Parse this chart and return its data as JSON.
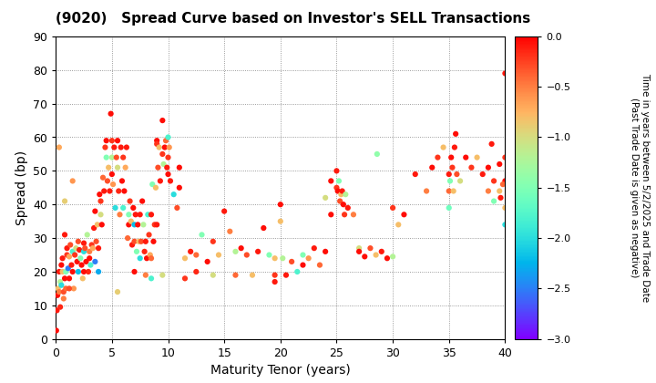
{
  "title": "(9020)   Spread Curve based on Investor's SELL Transactions",
  "xlabel": "Maturity Tenor (years)",
  "ylabel": "Spread (bp)",
  "colorbar_label": "Time in years between 5/2/2025 and Trade Date\n(Past Trade Date is given as negative)",
  "xlim": [
    0,
    40
  ],
  "ylim": [
    0,
    90
  ],
  "xticks": [
    0,
    5,
    10,
    15,
    20,
    25,
    30,
    35,
    40
  ],
  "yticks": [
    0,
    10,
    20,
    30,
    40,
    50,
    60,
    70,
    80,
    90
  ],
  "cmap_vmin": -3.0,
  "cmap_vmax": 0.0,
  "cticks": [
    0.0,
    -0.5,
    -1.0,
    -1.5,
    -2.0,
    -2.5,
    -3.0
  ],
  "background_color": "#ffffff",
  "marker_size": 20,
  "points": [
    [
      0.05,
      2.5,
      -0.05
    ],
    [
      0.1,
      8.5,
      -0.1
    ],
    [
      0.15,
      13.0,
      -0.05
    ],
    [
      0.2,
      15.0,
      -0.8
    ],
    [
      0.3,
      20.0,
      -0.1
    ],
    [
      0.3,
      14.0,
      -0.5
    ],
    [
      0.4,
      9.5,
      -0.15
    ],
    [
      0.4,
      17.0,
      -1.2
    ],
    [
      0.5,
      22.0,
      -0.05
    ],
    [
      0.5,
      16.0,
      -2.0
    ],
    [
      0.6,
      24.0,
      -0.1
    ],
    [
      0.6,
      20.0,
      -0.8
    ],
    [
      0.7,
      14.0,
      -0.3
    ],
    [
      0.7,
      12.0,
      -0.5
    ],
    [
      0.8,
      18.0,
      -0.05
    ],
    [
      0.8,
      31.0,
      -0.1
    ],
    [
      0.9,
      20.0,
      -1.5
    ],
    [
      0.9,
      15.0,
      -0.4
    ],
    [
      1.0,
      27.0,
      -0.1
    ],
    [
      1.0,
      25.0,
      -0.2
    ],
    [
      1.1,
      21.0,
      -2.5
    ],
    [
      1.2,
      18.0,
      -0.05
    ],
    [
      1.2,
      24.5,
      -0.7
    ],
    [
      1.3,
      28.0,
      -0.3
    ],
    [
      1.4,
      22.0,
      -0.1
    ],
    [
      1.5,
      26.0,
      -1.8
    ],
    [
      1.5,
      20.0,
      -0.05
    ],
    [
      1.6,
      15.0,
      -0.6
    ],
    [
      1.7,
      25.0,
      -0.2
    ],
    [
      1.8,
      27.0,
      -1.0
    ],
    [
      1.9,
      23.0,
      -0.05
    ],
    [
      2.0,
      20.0,
      -2.2
    ],
    [
      2.0,
      29.0,
      -0.3
    ],
    [
      2.1,
      26.5,
      -0.1
    ],
    [
      2.2,
      24.0,
      -1.5
    ],
    [
      2.3,
      22.0,
      -0.05
    ],
    [
      2.4,
      18.0,
      -0.8
    ],
    [
      2.5,
      28.5,
      -0.1
    ],
    [
      2.5,
      26.0,
      -2.0
    ],
    [
      2.6,
      27.0,
      -0.3
    ],
    [
      2.7,
      23.0,
      -0.05
    ],
    [
      2.8,
      31.0,
      -1.2
    ],
    [
      2.9,
      20.0,
      -0.15
    ],
    [
      3.0,
      26.0,
      -0.5
    ],
    [
      3.0,
      24.0,
      -0.05
    ],
    [
      3.1,
      22.0,
      -1.8
    ],
    [
      3.2,
      28.0,
      -0.2
    ],
    [
      3.3,
      27.0,
      -0.7
    ],
    [
      3.4,
      33.0,
      -0.1
    ],
    [
      3.5,
      23.0,
      -2.5
    ],
    [
      3.5,
      38.0,
      -0.05
    ],
    [
      3.6,
      29.0,
      -0.3
    ],
    [
      3.7,
      34.0,
      -0.8
    ],
    [
      3.8,
      27.0,
      -0.1
    ],
    [
      3.9,
      43.0,
      -0.05
    ],
    [
      4.0,
      41.0,
      -0.2
    ],
    [
      4.0,
      37.0,
      -1.0
    ],
    [
      4.1,
      34.0,
      -0.05
    ],
    [
      4.2,
      48.0,
      -0.4
    ],
    [
      4.3,
      44.0,
      -0.1
    ],
    [
      4.4,
      57.0,
      -0.2
    ],
    [
      4.5,
      54.0,
      -1.5
    ],
    [
      4.5,
      59.0,
      -0.05
    ],
    [
      4.6,
      47.0,
      -0.3
    ],
    [
      4.7,
      51.0,
      -0.8
    ],
    [
      4.8,
      44.0,
      -0.1
    ],
    [
      4.9,
      67.0,
      -0.05
    ],
    [
      5.0,
      59.0,
      -0.2
    ],
    [
      5.0,
      54.0,
      -1.2
    ],
    [
      5.0,
      49.0,
      -0.05
    ],
    [
      5.1,
      46.0,
      -0.6
    ],
    [
      5.2,
      57.0,
      -0.1
    ],
    [
      5.3,
      39.0,
      -2.0
    ],
    [
      5.4,
      54.0,
      -0.3
    ],
    [
      5.5,
      59.0,
      -0.05
    ],
    [
      5.5,
      51.0,
      -1.0
    ],
    [
      5.6,
      44.0,
      -0.15
    ],
    [
      5.7,
      37.0,
      -0.5
    ],
    [
      5.8,
      57.0,
      -0.1
    ],
    [
      5.9,
      47.0,
      -0.05
    ],
    [
      6.0,
      39.0,
      -1.8
    ],
    [
      6.0,
      54.0,
      -0.2
    ],
    [
      6.1,
      44.0,
      -0.05
    ],
    [
      6.2,
      51.0,
      -0.7
    ],
    [
      6.3,
      57.0,
      -0.1
    ],
    [
      6.4,
      30.0,
      -0.4
    ],
    [
      6.5,
      37.0,
      -1.5
    ],
    [
      6.5,
      34.0,
      -0.05
    ],
    [
      6.6,
      41.0,
      -0.2
    ],
    [
      6.7,
      35.0,
      -0.8
    ],
    [
      6.8,
      28.0,
      -0.1
    ],
    [
      6.9,
      39.0,
      -0.05
    ],
    [
      7.0,
      34.0,
      -2.2
    ],
    [
      7.0,
      29.0,
      -0.3
    ],
    [
      7.1,
      37.0,
      -0.1
    ],
    [
      7.2,
      26.0,
      -1.5
    ],
    [
      7.3,
      34.0,
      -0.05
    ],
    [
      7.4,
      29.0,
      -0.8
    ],
    [
      7.5,
      37.0,
      -0.1
    ],
    [
      7.5,
      24.0,
      -2.0
    ],
    [
      7.6,
      29.0,
      -0.3
    ],
    [
      7.7,
      41.0,
      -0.05
    ],
    [
      7.8,
      34.0,
      -1.2
    ],
    [
      7.9,
      26.0,
      -0.15
    ],
    [
      8.0,
      19.0,
      -0.5
    ],
    [
      8.0,
      29.0,
      -0.1
    ],
    [
      8.1,
      24.0,
      -0.05
    ],
    [
      8.2,
      37.0,
      -1.8
    ],
    [
      8.3,
      31.0,
      -0.2
    ],
    [
      8.4,
      25.0,
      -0.7
    ],
    [
      8.5,
      37.0,
      -0.1
    ],
    [
      8.5,
      24.0,
      -0.4
    ],
    [
      8.6,
      46.0,
      -1.5
    ],
    [
      8.7,
      29.0,
      -0.05
    ],
    [
      8.8,
      34.0,
      -0.2
    ],
    [
      8.9,
      45.0,
      -0.8
    ],
    [
      9.0,
      59.0,
      -0.05
    ],
    [
      9.0,
      34.0,
      -0.1
    ],
    [
      9.0,
      58.0,
      -0.2
    ],
    [
      9.1,
      51.0,
      -0.3
    ],
    [
      9.2,
      57.0,
      -0.8
    ],
    [
      9.3,
      47.0,
      -0.1
    ],
    [
      9.5,
      65.0,
      -0.05
    ],
    [
      9.5,
      55.0,
      -0.2
    ],
    [
      9.6,
      52.0,
      -1.2
    ],
    [
      9.7,
      57.0,
      -0.05
    ],
    [
      9.8,
      59.0,
      -0.4
    ],
    [
      9.9,
      51.0,
      -0.1
    ],
    [
      10.0,
      60.0,
      -1.8
    ],
    [
      10.0,
      54.0,
      -0.2
    ],
    [
      10.0,
      49.0,
      -0.05
    ],
    [
      10.1,
      57.0,
      -0.6
    ],
    [
      10.2,
      47.0,
      -0.1
    ],
    [
      10.5,
      43.0,
      -2.0
    ],
    [
      10.8,
      39.0,
      -0.3
    ],
    [
      11.0,
      45.0,
      -0.05
    ],
    [
      11.0,
      51.0,
      -0.05
    ],
    [
      11.5,
      24.0,
      -0.8
    ],
    [
      12.0,
      26.0,
      -0.1
    ],
    [
      12.5,
      25.0,
      -0.4
    ],
    [
      13.0,
      31.0,
      -1.5
    ],
    [
      13.5,
      23.0,
      -0.05
    ],
    [
      14.0,
      29.0,
      -0.2
    ],
    [
      14.5,
      25.0,
      -0.8
    ],
    [
      15.0,
      38.0,
      -0.1
    ],
    [
      15.5,
      32.0,
      -0.5
    ],
    [
      16.0,
      26.0,
      -1.2
    ],
    [
      16.5,
      27.0,
      -0.05
    ],
    [
      17.0,
      25.0,
      -0.3
    ],
    [
      17.5,
      19.0,
      -0.8
    ],
    [
      18.0,
      26.0,
      -0.1
    ],
    [
      18.5,
      33.0,
      -0.05
    ],
    [
      19.0,
      25.0,
      -1.5
    ],
    [
      19.5,
      19.0,
      -0.2
    ],
    [
      19.5,
      24.0,
      -0.8
    ],
    [
      20.0,
      40.0,
      -0.05
    ],
    [
      20.0,
      35.0,
      -0.8
    ],
    [
      20.2,
      24.0,
      -1.2
    ],
    [
      20.5,
      19.0,
      -0.1
    ],
    [
      21.0,
      23.0,
      -0.3
    ],
    [
      21.5,
      20.0,
      -1.8
    ],
    [
      22.0,
      22.0,
      -0.05
    ],
    [
      22.5,
      24.0,
      -0.6
    ],
    [
      23.0,
      27.0,
      -0.1
    ],
    [
      23.5,
      22.0,
      -0.4
    ],
    [
      24.0,
      42.0,
      -1.0
    ],
    [
      24.5,
      37.0,
      -0.05
    ],
    [
      24.5,
      47.0,
      -0.05
    ],
    [
      25.0,
      50.0,
      -0.1
    ],
    [
      25.0,
      45.0,
      -0.2
    ],
    [
      25.1,
      44.0,
      -0.05
    ],
    [
      25.2,
      47.0,
      -1.5
    ],
    [
      25.3,
      41.0,
      -0.3
    ],
    [
      25.4,
      43.0,
      -0.8
    ],
    [
      25.5,
      44.0,
      -0.1
    ],
    [
      25.6,
      40.0,
      -0.05
    ],
    [
      25.7,
      37.0,
      -0.2
    ],
    [
      25.8,
      43.0,
      -1.2
    ],
    [
      26.0,
      39.0,
      -0.1
    ],
    [
      26.5,
      37.0,
      -0.5
    ],
    [
      27.0,
      27.0,
      -1.0
    ],
    [
      27.5,
      24.5,
      -0.05
    ],
    [
      28.0,
      27.0,
      -0.3
    ],
    [
      28.5,
      25.0,
      -0.8
    ],
    [
      28.6,
      55.0,
      -1.4
    ],
    [
      29.0,
      26.0,
      -0.1
    ],
    [
      29.5,
      24.0,
      -0.05
    ],
    [
      30.0,
      39.0,
      -0.2
    ],
    [
      30.5,
      34.0,
      -0.8
    ],
    [
      31.0,
      37.0,
      -0.05
    ],
    [
      32.0,
      49.0,
      -0.1
    ],
    [
      33.0,
      44.0,
      -0.5
    ],
    [
      33.5,
      51.0,
      -0.05
    ],
    [
      34.0,
      54.0,
      -0.2
    ],
    [
      34.5,
      57.0,
      -0.8
    ],
    [
      35.0,
      49.0,
      -0.1
    ],
    [
      35.0,
      44.0,
      -0.4
    ],
    [
      35.1,
      47.0,
      -1.5
    ],
    [
      35.2,
      54.0,
      -0.05
    ],
    [
      35.3,
      51.0,
      -0.2
    ],
    [
      35.4,
      44.0,
      -0.8
    ],
    [
      35.5,
      57.0,
      -0.1
    ],
    [
      35.6,
      61.0,
      -0.05
    ],
    [
      35.7,
      49.0,
      -0.3
    ],
    [
      36.0,
      47.0,
      -1.0
    ],
    [
      36.5,
      54.0,
      -0.05
    ],
    [
      37.0,
      51.0,
      -0.2
    ],
    [
      37.5,
      54.0,
      -0.8
    ],
    [
      38.0,
      49.0,
      -0.1
    ],
    [
      38.5,
      44.0,
      -0.5
    ],
    [
      38.5,
      51.0,
      -0.05
    ],
    [
      38.8,
      58.0,
      -0.1
    ],
    [
      39.0,
      41.0,
      -1.5
    ],
    [
      39.0,
      47.0,
      -0.2
    ],
    [
      39.5,
      44.0,
      -0.8
    ],
    [
      39.5,
      52.0,
      -0.05
    ],
    [
      40.0,
      79.0,
      -0.1
    ],
    [
      40.0,
      47.0,
      -0.05
    ],
    [
      40.0,
      54.0,
      -0.2
    ],
    [
      40.0,
      39.0,
      -0.8
    ],
    [
      40.0,
      34.0,
      -2.0
    ],
    [
      39.8,
      46.0,
      -0.4
    ],
    [
      39.6,
      42.0,
      -0.1
    ],
    [
      0.3,
      57.0,
      -0.7
    ],
    [
      1.5,
      47.0,
      -0.6
    ],
    [
      0.8,
      41.0,
      -0.9
    ],
    [
      1.2,
      15.0,
      -0.3
    ],
    [
      2.5,
      20.0,
      -0.05
    ],
    [
      3.8,
      20.0,
      -2.3
    ],
    [
      5.5,
      14.0,
      -0.9
    ],
    [
      7.0,
      20.0,
      -0.05
    ],
    [
      8.5,
      18.0,
      -1.8
    ],
    [
      9.5,
      19.0,
      -1.0
    ],
    [
      11.5,
      18.0,
      -0.2
    ],
    [
      12.5,
      20.0,
      -0.15
    ],
    [
      14.0,
      19.0,
      -1.0
    ],
    [
      16.0,
      19.0,
      -0.4
    ],
    [
      19.5,
      17.0,
      -0.1
    ],
    [
      22.0,
      25.0,
      -1.5
    ],
    [
      24.0,
      26.0,
      -0.05
    ],
    [
      27.0,
      26.0,
      -0.05
    ],
    [
      30.0,
      24.5,
      -1.2
    ],
    [
      35.0,
      39.0,
      -1.6
    ]
  ]
}
